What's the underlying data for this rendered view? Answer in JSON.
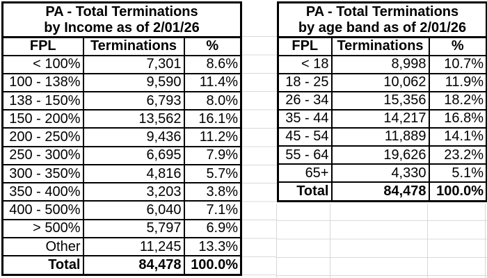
{
  "tables": [
    {
      "title_line1": "PA - Total Terminations",
      "title_line2": "by Income as of 2/01/26",
      "columns": [
        "FPL",
        "Terminations",
        "%"
      ],
      "rows": [
        [
          "< 100%",
          "7,301",
          "8.6%"
        ],
        [
          "100 - 138%",
          "9,590",
          "11.4%"
        ],
        [
          "138 - 150%",
          "6,793",
          "8.0%"
        ],
        [
          "150 - 200%",
          "13,562",
          "16.1%"
        ],
        [
          "200 - 250%",
          "9,436",
          "11.2%"
        ],
        [
          "250 - 300%",
          "6,695",
          "7.9%"
        ],
        [
          "300 - 350%",
          "4,816",
          "5.7%"
        ],
        [
          "350 - 400%",
          "3,203",
          "3.8%"
        ],
        [
          "400 - 500%",
          "6,040",
          "7.1%"
        ],
        [
          "> 500%",
          "5,797",
          "6.9%"
        ],
        [
          "Other",
          "11,245",
          "13.3%"
        ]
      ],
      "total": [
        "Total",
        "84,478",
        "100.0%"
      ]
    },
    {
      "title_line1": "PA - Total Terminations",
      "title_line2": "by age band as of 2/01/26",
      "columns": [
        "FPL",
        "Terminations",
        "%"
      ],
      "rows": [
        [
          "< 18",
          "8,998",
          "10.7%"
        ],
        [
          "18 - 25",
          "10,062",
          "11.9%"
        ],
        [
          "26 - 34",
          "15,356",
          "18.2%"
        ],
        [
          "35 - 44",
          "14,217",
          "16.8%"
        ],
        [
          "45 - 54",
          "11,889",
          "14.1%"
        ],
        [
          "55 - 64",
          "19,626",
          "23.2%"
        ],
        [
          "65+",
          "4,330",
          "5.1%"
        ]
      ],
      "total": [
        "Total",
        "84,478",
        "100.0%"
      ]
    }
  ],
  "colors": {
    "border": "#000000",
    "gridline": "#d8d8d8",
    "background": "#ffffff",
    "text": "#000000"
  }
}
